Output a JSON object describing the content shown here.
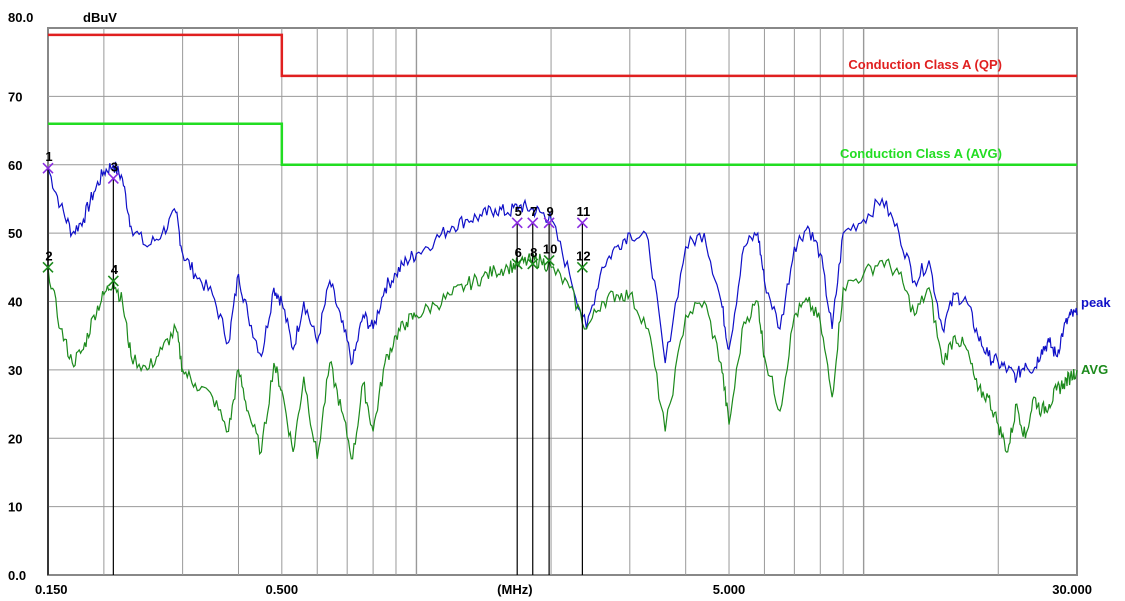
{
  "chart_data": {
    "type": "line",
    "title": "",
    "ylabel": "dBuV",
    "xlabel": "(MHz)",
    "xscale": "log",
    "xlim": [
      0.15,
      30
    ],
    "ylim": [
      0,
      80
    ],
    "grid": true,
    "y_tick_labels": [
      {
        "value": 80,
        "label": "80.0"
      },
      {
        "value": 70,
        "label": "70"
      },
      {
        "value": 60,
        "label": "60"
      },
      {
        "value": 50,
        "label": "50"
      },
      {
        "value": 40,
        "label": "40"
      },
      {
        "value": 30,
        "label": "30"
      },
      {
        "value": 20,
        "label": "20"
      },
      {
        "value": 10,
        "label": "10"
      },
      {
        "value": 0,
        "label": "0.0"
      }
    ],
    "x_tick_labels": [
      {
        "value": 0.15,
        "label": "0.150"
      },
      {
        "value": 0.5,
        "label": "0.500"
      },
      {
        "value": 1.66,
        "label": "(MHz)"
      },
      {
        "value": 5,
        "label": "5.000"
      },
      {
        "value": 30,
        "label": "30.000"
      }
    ],
    "limit_lines": [
      {
        "name": "Conduction Class A (QP)",
        "color": "#e02020",
        "segments": [
          {
            "x": [
              0.15,
              0.5
            ],
            "y": [
              79
            ]
          },
          {
            "x": [
              0.5,
              30
            ],
            "y": [
              73
            ]
          }
        ]
      },
      {
        "name": "Conduction Class A (AVG)",
        "color": "#22dd22",
        "segments": [
          {
            "x": [
              0.15,
              0.5
            ],
            "y": [
              66
            ]
          },
          {
            "x": [
              0.5,
              30
            ],
            "y": [
              60
            ]
          }
        ]
      }
    ],
    "series": [
      {
        "name": "peak",
        "color": "#1010c8",
        "x": [
          0.15,
          0.16,
          0.17,
          0.18,
          0.19,
          0.2,
          0.21,
          0.22,
          0.23,
          0.25,
          0.27,
          0.29,
          0.3,
          0.32,
          0.35,
          0.38,
          0.4,
          0.42,
          0.45,
          0.48,
          0.5,
          0.53,
          0.56,
          0.6,
          0.64,
          0.68,
          0.72,
          0.76,
          0.8,
          0.85,
          0.9,
          0.95,
          1.0,
          1.1,
          1.2,
          1.3,
          1.4,
          1.5,
          1.6,
          1.7,
          1.8,
          1.9,
          2.0,
          2.2,
          2.4,
          2.6,
          2.8,
          3.0,
          3.3,
          3.6,
          4.0,
          4.4,
          4.8,
          5.0,
          5.4,
          5.8,
          6.0,
          6.5,
          7.0,
          7.5,
          8.0,
          8.5,
          9.0,
          10.0,
          11.0,
          12.0,
          13.0,
          14.0,
          15.0,
          16.0,
          17.0,
          18.0,
          19.0,
          20.0,
          21.0,
          22.0,
          23.0,
          24.0,
          25.0,
          26.0,
          27.0,
          28.0,
          29.0,
          30.0
        ],
        "y": [
          59.5,
          54,
          50,
          52,
          56,
          59,
          60,
          58,
          51,
          48,
          50,
          53,
          47,
          44,
          41,
          34,
          44,
          38,
          32,
          42,
          40,
          33,
          40,
          34,
          43,
          37,
          31,
          38,
          36,
          42,
          44,
          46,
          47,
          49,
          51,
          52,
          52.5,
          53.5,
          53,
          54,
          53.5,
          53,
          52,
          44,
          36,
          45,
          48,
          50,
          49,
          31,
          48,
          50,
          40,
          33,
          48,
          50,
          43,
          36,
          48,
          51,
          47,
          36,
          50,
          52,
          55,
          50,
          43,
          46,
          36,
          41,
          40,
          35,
          32,
          31,
          30,
          29,
          31,
          30,
          33,
          34,
          32,
          36,
          38,
          38
        ]
      },
      {
        "name": "AVG",
        "color": "#1c8a1c",
        "x": [
          0.15,
          0.16,
          0.17,
          0.18,
          0.19,
          0.2,
          0.21,
          0.22,
          0.23,
          0.25,
          0.27,
          0.29,
          0.3,
          0.32,
          0.35,
          0.38,
          0.4,
          0.42,
          0.45,
          0.48,
          0.5,
          0.53,
          0.56,
          0.6,
          0.64,
          0.68,
          0.72,
          0.76,
          0.8,
          0.85,
          0.9,
          0.95,
          1.0,
          1.1,
          1.2,
          1.3,
          1.4,
          1.5,
          1.6,
          1.7,
          1.8,
          1.9,
          2.0,
          2.2,
          2.4,
          2.6,
          2.8,
          3.0,
          3.3,
          3.6,
          4.0,
          4.4,
          4.8,
          5.0,
          5.4,
          5.8,
          6.0,
          6.5,
          7.0,
          7.5,
          8.0,
          8.5,
          9.0,
          10.0,
          11.0,
          12.0,
          13.0,
          14.0,
          15.0,
          16.0,
          17.0,
          18.0,
          19.0,
          20.0,
          21.0,
          22.0,
          23.0,
          24.0,
          25.0,
          26.0,
          27.0,
          28.0,
          29.0,
          30.0
        ],
        "y": [
          45,
          36,
          31,
          33,
          38,
          41,
          43,
          40,
          32,
          30,
          33,
          36,
          30,
          28,
          26,
          21,
          30,
          24,
          18,
          31,
          27,
          18,
          29,
          17,
          31,
          24,
          17,
          28,
          21,
          31,
          35,
          37,
          38,
          39.5,
          41,
          42.5,
          43.5,
          44.5,
          45,
          45.5,
          46,
          46,
          45,
          42,
          36,
          40,
          41,
          41,
          36,
          21,
          38,
          40,
          31,
          22,
          37,
          40,
          32,
          24,
          38,
          40,
          37,
          26,
          42,
          44,
          46,
          44,
          38,
          42,
          31,
          35,
          33,
          27,
          26,
          22,
          18,
          25,
          20,
          26,
          24,
          25,
          27,
          28,
          29,
          30
        ]
      }
    ],
    "markers": [
      {
        "label": "1",
        "x": 0.15,
        "y": 59.5,
        "kind": "peak"
      },
      {
        "label": "2",
        "x": 0.15,
        "y": 45.0,
        "kind": "avg"
      },
      {
        "label": "3",
        "x": 0.21,
        "y": 58.0,
        "kind": "peak"
      },
      {
        "label": "4",
        "x": 0.21,
        "y": 43.0,
        "kind": "avg"
      },
      {
        "label": "5",
        "x": 1.68,
        "y": 51.5,
        "kind": "peak"
      },
      {
        "label": "6",
        "x": 1.68,
        "y": 45.5,
        "kind": "avg"
      },
      {
        "label": "7",
        "x": 1.82,
        "y": 51.5,
        "kind": "peak"
      },
      {
        "label": "8",
        "x": 1.82,
        "y": 45.5,
        "kind": "avg"
      },
      {
        "label": "9",
        "x": 1.98,
        "y": 51.5,
        "kind": "peak"
      },
      {
        "label": "10",
        "x": 1.98,
        "y": 46.0,
        "kind": "avg"
      },
      {
        "label": "11",
        "x": 2.35,
        "y": 51.5,
        "kind": "peak"
      },
      {
        "label": "12",
        "x": 2.35,
        "y": 45.0,
        "kind": "avg"
      }
    ],
    "colors": {
      "grid": "#999999",
      "frame": "#888888",
      "marker_x": "#8a2be2",
      "marker_line": "#000000",
      "text": "#000000"
    }
  }
}
